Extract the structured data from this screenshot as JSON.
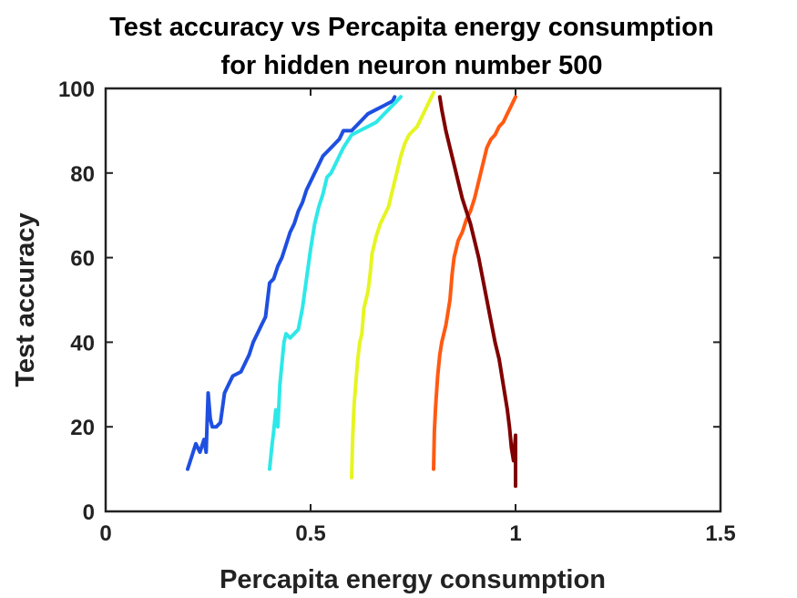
{
  "chart_data": {
    "type": "line",
    "title": [
      "Test accuracy vs Percapita energy consumption",
      "for hidden neuron number 500"
    ],
    "xlabel": "Percapita energy consumption",
    "ylabel": "Test accuracy",
    "xlim": [
      0,
      1.5
    ],
    "ylim": [
      0,
      100
    ],
    "xticks": [
      0,
      0.5,
      1,
      1.5
    ],
    "xtick_labels": [
      "0",
      "0.5",
      "1",
      "1.5"
    ],
    "yticks": [
      0,
      20,
      40,
      60,
      80,
      100
    ],
    "ytick_labels": [
      "0",
      "20",
      "40",
      "60",
      "80",
      "100"
    ],
    "grid": false,
    "legend": "none",
    "series": [
      {
        "color": "#1f4fe0",
        "x": [
          0.2,
          0.21,
          0.22,
          0.23,
          0.24,
          0.245,
          0.25,
          0.255,
          0.26,
          0.27,
          0.28,
          0.29,
          0.3,
          0.31,
          0.33,
          0.35,
          0.36,
          0.37,
          0.38,
          0.39,
          0.4,
          0.41,
          0.42,
          0.43,
          0.44,
          0.45,
          0.46,
          0.47,
          0.48,
          0.49,
          0.5,
          0.51,
          0.52,
          0.53,
          0.54,
          0.55,
          0.57,
          0.58,
          0.6,
          0.62,
          0.64,
          0.66,
          0.68,
          0.7,
          0.705
        ],
        "y": [
          10,
          13,
          16,
          14,
          17,
          14,
          28,
          22,
          20,
          20,
          21,
          28,
          30,
          32,
          33,
          37,
          40,
          42,
          44,
          46,
          54,
          55,
          58,
          60,
          63,
          66,
          68,
          71,
          73,
          76,
          78,
          80,
          82,
          84,
          85,
          86,
          88,
          90,
          90,
          92,
          94,
          95,
          96,
          97,
          98
        ]
      },
      {
        "color": "#2ee8e8",
        "x": [
          0.4,
          0.405,
          0.41,
          0.415,
          0.42,
          0.425,
          0.43,
          0.435,
          0.44,
          0.45,
          0.46,
          0.47,
          0.48,
          0.49,
          0.5,
          0.51,
          0.52,
          0.53,
          0.54,
          0.55,
          0.56,
          0.58,
          0.6,
          0.62,
          0.64,
          0.66,
          0.68,
          0.7,
          0.72
        ],
        "y": [
          10,
          15,
          19,
          24,
          20,
          30,
          35,
          40,
          42,
          41,
          42,
          43,
          48,
          55,
          62,
          68,
          72,
          75,
          79,
          80,
          82,
          86,
          89,
          90,
          91,
          92,
          94,
          96,
          98
        ]
      },
      {
        "color": "#e6f521",
        "x": [
          0.6,
          0.603,
          0.606,
          0.61,
          0.615,
          0.62,
          0.625,
          0.63,
          0.64,
          0.645,
          0.65,
          0.66,
          0.67,
          0.68,
          0.69,
          0.7,
          0.71,
          0.72,
          0.73,
          0.74,
          0.75,
          0.76,
          0.77,
          0.78,
          0.79,
          0.8
        ],
        "y": [
          8,
          18,
          25,
          30,
          36,
          40,
          42,
          48,
          52,
          56,
          61,
          65,
          68,
          70,
          72,
          76,
          80,
          84,
          87,
          89,
          90,
          91,
          93,
          95,
          97,
          99
        ]
      },
      {
        "color": "#ff5a12",
        "x": [
          0.8,
          0.802,
          0.805,
          0.81,
          0.815,
          0.82,
          0.83,
          0.84,
          0.845,
          0.85,
          0.86,
          0.87,
          0.88,
          0.89,
          0.9,
          0.91,
          0.92,
          0.93,
          0.94,
          0.95,
          0.96,
          0.97,
          0.98,
          0.99,
          1.0
        ],
        "y": [
          10,
          19,
          25,
          32,
          37,
          40,
          44,
          50,
          56,
          60,
          64,
          66,
          69,
          71,
          74,
          78,
          82,
          86,
          88,
          89,
          91,
          92,
          94,
          96,
          98
        ]
      },
      {
        "color": "#800000",
        "x": [
          0.815,
          0.82,
          0.83,
          0.84,
          0.85,
          0.86,
          0.87,
          0.88,
          0.89,
          0.9,
          0.91,
          0.92,
          0.93,
          0.94,
          0.95,
          0.96,
          0.97,
          0.98,
          0.985,
          0.99,
          0.995,
          1.0,
          1.0
        ],
        "y": [
          98,
          95,
          90,
          86,
          82,
          78,
          74,
          71,
          68,
          64,
          60,
          55,
          50,
          45,
          40,
          36,
          30,
          24,
          20,
          15,
          12,
          18,
          6
        ]
      }
    ]
  }
}
